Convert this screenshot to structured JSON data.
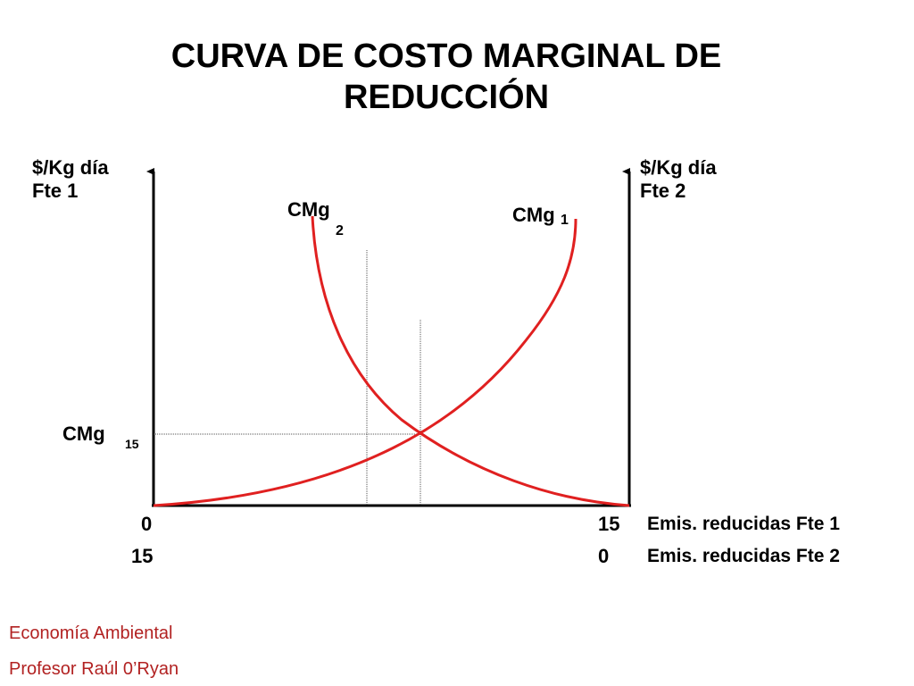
{
  "title": {
    "line1": "CURVA DE COSTO MARGINAL DE",
    "line2": "REDUCCIÓN"
  },
  "chart_data": {
    "type": "line",
    "left_axis": {
      "line1": "$/Kg día",
      "line2": "Fte 1"
    },
    "right_axis": {
      "line1": "$/Kg día",
      "line2": "Fte 2"
    },
    "x_axis_fte1": {
      "label": "Emis. reducidas Fte 1",
      "start": "0",
      "end": "15"
    },
    "x_axis_fte2": {
      "label": "Emis. reducidas Fte 2",
      "start": "15",
      "end": "0"
    },
    "series": [
      {
        "name": "CMg",
        "subscript": "1",
        "color": "#e02020"
      },
      {
        "name": "CMg",
        "subscript": "2",
        "color": "#e02020"
      }
    ],
    "equilibrium": {
      "label": "CMg",
      "subscript": "15"
    }
  },
  "footer": {
    "course": "Economía Ambiental",
    "professor": "Profesor Raúl 0’Ryan"
  }
}
